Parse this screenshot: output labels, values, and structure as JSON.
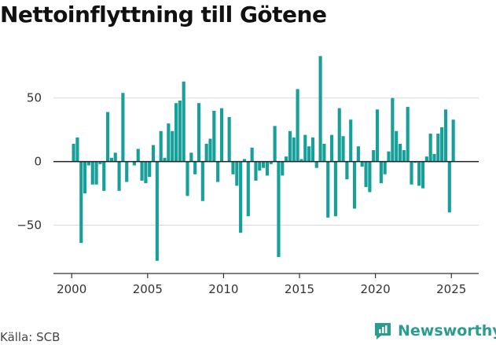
{
  "chart_data": {
    "type": "bar",
    "title": "Nettoinflyttning till Götene",
    "xlabel": "",
    "ylabel": "",
    "ylim": [
      -88,
      90
    ],
    "xlim": [
      1998.8,
      2026.8
    ],
    "y_ticks": [
      -50,
      0,
      50
    ],
    "x_ticks": [
      2000,
      2005,
      2010,
      2015,
      2020,
      2025
    ],
    "y_tick_labels": [
      "−50",
      "0",
      "50"
    ],
    "x_tick_labels": [
      "2000",
      "2005",
      "2010",
      "2015",
      "2020",
      "2025"
    ],
    "grid": true,
    "bar_color": "#17a09a",
    "x": [
      2000.125,
      2000.375,
      2000.625,
      2000.875,
      2001.125,
      2001.375,
      2001.625,
      2001.875,
      2002.125,
      2002.375,
      2002.625,
      2002.875,
      2003.125,
      2003.375,
      2003.625,
      2003.875,
      2004.125,
      2004.375,
      2004.625,
      2004.875,
      2005.125,
      2005.375,
      2005.625,
      2005.875,
      2006.125,
      2006.375,
      2006.625,
      2006.875,
      2007.125,
      2007.375,
      2007.625,
      2007.875,
      2008.125,
      2008.375,
      2008.625,
      2008.875,
      2009.125,
      2009.375,
      2009.625,
      2009.875,
      2010.125,
      2010.375,
      2010.625,
      2010.875,
      2011.125,
      2011.375,
      2011.625,
      2011.875,
      2012.125,
      2012.375,
      2012.625,
      2012.875,
      2013.125,
      2013.375,
      2013.625,
      2013.875,
      2014.125,
      2014.375,
      2014.625,
      2014.875,
      2015.125,
      2015.375,
      2015.625,
      2015.875,
      2016.125,
      2016.375,
      2016.625,
      2016.875,
      2017.125,
      2017.375,
      2017.625,
      2017.875,
      2018.125,
      2018.375,
      2018.625,
      2018.875,
      2019.125,
      2019.375,
      2019.625,
      2019.875,
      2020.125,
      2020.375,
      2020.625,
      2020.875,
      2021.125,
      2021.375,
      2021.625,
      2021.875,
      2022.125,
      2022.375,
      2022.625,
      2022.875,
      2023.125,
      2023.375,
      2023.625,
      2023.875,
      2024.125,
      2024.375,
      2024.625,
      2024.875,
      2025.125,
      2025.375
    ],
    "values": [
      14,
      19,
      -64,
      -25,
      -3,
      -18,
      -18,
      -2,
      -23,
      39,
      3,
      7,
      -23,
      54,
      -16,
      0,
      -3,
      10,
      -15,
      -17,
      -12,
      13,
      -78,
      24,
      3,
      30,
      24,
      46,
      48,
      63,
      -27,
      7,
      -10,
      46,
      -31,
      14,
      18,
      40,
      -16,
      42,
      0,
      35,
      -10,
      -19,
      -56,
      2,
      -43,
      11,
      -15,
      -7,
      -5,
      -11,
      -2,
      28,
      -75,
      -11,
      4,
      24,
      19,
      57,
      2,
      21,
      12,
      19,
      -5,
      83,
      14,
      -44,
      21,
      -43,
      42,
      20,
      -14,
      33,
      -37,
      12,
      -4,
      -20,
      -24,
      9,
      41,
      -17,
      -10,
      8,
      50,
      24,
      14,
      9,
      43,
      -18,
      -1,
      -19,
      -21,
      4,
      22,
      6,
      22,
      27,
      41,
      -40,
      33,
      0
    ]
  },
  "source": "Källa: SCB",
  "brand": {
    "name": "Newsworthy"
  },
  "colors": {
    "accent": "#17a09a",
    "brand": "#2a9d8f",
    "grid": "#d9d9d9",
    "axis": "#333333"
  }
}
